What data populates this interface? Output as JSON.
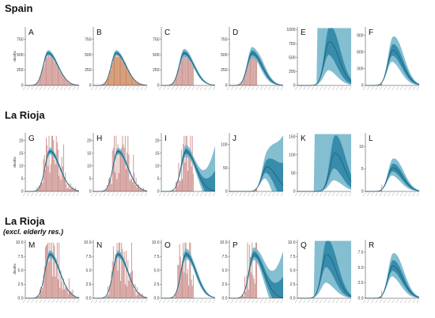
{
  "rows": [
    {
      "title": "Spain",
      "subtitle": ""
    },
    {
      "title": "La Rioja",
      "subtitle": ""
    },
    {
      "title": "La Rioja",
      "subtitle": "(excl. elderly res.)"
    }
  ],
  "y_axis_label": "deaths",
  "colors": {
    "bar": "#c98a86",
    "bar_alt": "#c77a4a",
    "band_outer": "#6fb3c9",
    "band_inner": "#2f86a6",
    "line": "#1f5f78"
  },
  "chart_data": [
    {
      "type": "area",
      "panel": "A",
      "y_ticks": [
        "0",
        "250",
        "500",
        "750"
      ],
      "ylim": [
        0,
        950
      ],
      "peak_position": 0.43,
      "observed_fraction": 1.0,
      "band_note": "narrow"
    },
    {
      "type": "area",
      "panel": "B",
      "y_ticks": [
        "0",
        "250",
        "500",
        "750"
      ],
      "ylim": [
        0,
        950
      ],
      "peak_position": 0.43,
      "observed_fraction": 1.0,
      "band_note": "narrow"
    },
    {
      "type": "area",
      "panel": "C",
      "y_ticks": [
        "0",
        "250",
        "500",
        "750"
      ],
      "ylim": [
        0,
        950
      ],
      "peak_position": 0.43,
      "observed_fraction": 0.6,
      "band_note": "medium"
    },
    {
      "type": "area",
      "panel": "D",
      "y_ticks": [
        "0",
        "250",
        "500",
        "750"
      ],
      "ylim": [
        0,
        950
      ],
      "peak_position": 0.43,
      "observed_fraction": 0.5,
      "band_note": "wide"
    },
    {
      "type": "area",
      "panel": "E",
      "y_ticks": [
        "0",
        "250",
        "500",
        "750",
        "1000"
      ],
      "ylim": [
        0,
        1050
      ],
      "peak_position": 0.6,
      "observed_fraction": 0.35,
      "band_note": "very wide"
    },
    {
      "type": "area",
      "panel": "F",
      "y_ticks": [
        "0",
        "300",
        "600",
        "900"
      ],
      "ylim": [
        0,
        1050
      ],
      "peak_position": 0.5,
      "observed_fraction": 0.3,
      "band_note": "wide"
    },
    {
      "type": "area",
      "panel": "G",
      "y_ticks": [
        "0",
        "5",
        "10",
        "15",
        "20"
      ],
      "ylim": [
        0,
        23
      ],
      "peak_position": 0.45,
      "observed_fraction": 1.0,
      "band_note": "narrow"
    },
    {
      "type": "area",
      "panel": "H",
      "y_ticks": [
        "0",
        "5",
        "10",
        "15",
        "20"
      ],
      "ylim": [
        0,
        23
      ],
      "peak_position": 0.45,
      "observed_fraction": 1.0,
      "band_note": "narrow"
    },
    {
      "type": "area",
      "panel": "I",
      "y_ticks": [
        "0",
        "5",
        "10",
        "15",
        "20"
      ],
      "ylim": [
        0,
        23
      ],
      "peak_position": 0.45,
      "observed_fraction": 0.6,
      "band_note": "widening"
    },
    {
      "type": "area",
      "panel": "J",
      "y_ticks": [
        "0",
        "50",
        "100"
      ],
      "ylim": [
        0,
        125
      ],
      "peak_position": 0.7,
      "observed_fraction": 0.5,
      "band_note": "widening"
    },
    {
      "type": "area",
      "panel": "K",
      "y_ticks": [
        "0",
        "50",
        "100",
        "150"
      ],
      "ylim": [
        0,
        160
      ],
      "peak_position": 0.7,
      "observed_fraction": 0.3,
      "band_note": "very wide"
    },
    {
      "type": "area",
      "panel": "L",
      "y_ticks": [
        "0",
        "5",
        "10"
      ],
      "ylim": [
        0,
        13
      ],
      "peak_position": 0.5,
      "observed_fraction": 0.3,
      "band_note": "wide"
    },
    {
      "type": "area",
      "panel": "M",
      "y_ticks": [
        "0.0",
        "2.5",
        "5.0",
        "7.5",
        "10.0"
      ],
      "ylim": [
        0,
        10.5
      ],
      "peak_position": 0.45,
      "observed_fraction": 1.0,
      "band_note": "narrow"
    },
    {
      "type": "area",
      "panel": "N",
      "y_ticks": [
        "0.0",
        "2.5",
        "5.0",
        "7.5",
        "10.0"
      ],
      "ylim": [
        0,
        10.5
      ],
      "peak_position": 0.45,
      "observed_fraction": 1.0,
      "band_note": "narrow"
    },
    {
      "type": "area",
      "panel": "O",
      "y_ticks": [
        "0.0",
        "2.5",
        "5.0",
        "7.5",
        "10.0"
      ],
      "ylim": [
        0,
        10.5
      ],
      "peak_position": 0.45,
      "observed_fraction": 0.6,
      "band_note": "medium"
    },
    {
      "type": "area",
      "panel": "P",
      "y_ticks": [
        "0.0",
        "2.5",
        "5.0",
        "7.5",
        "10.0"
      ],
      "ylim": [
        0,
        10.5
      ],
      "peak_position": 0.45,
      "observed_fraction": 0.5,
      "band_note": "widening"
    },
    {
      "type": "area",
      "panel": "Q",
      "y_ticks": [
        "0.0",
        "2.5",
        "5.0",
        "7.5",
        "10.0"
      ],
      "ylim": [
        0,
        10.5
      ],
      "peak_position": 0.55,
      "observed_fraction": 0.3,
      "band_note": "very wide"
    },
    {
      "type": "area",
      "panel": "R",
      "y_ticks": [
        "0.0",
        "2.5",
        "5.0",
        "7.5"
      ],
      "ylim": [
        0,
        9.5
      ],
      "peak_position": 0.5,
      "observed_fraction": 0.3,
      "band_note": "wide"
    }
  ]
}
